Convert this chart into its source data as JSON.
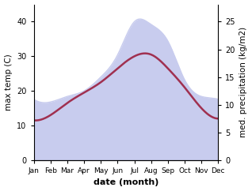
{
  "months": [
    "Jan",
    "Feb",
    "Mar",
    "Apr",
    "May",
    "Jun",
    "Jul",
    "Aug",
    "Sep",
    "Oct",
    "Nov",
    "Dec"
  ],
  "month_indices": [
    1,
    2,
    3,
    4,
    5,
    6,
    7,
    8,
    9,
    10,
    11,
    12
  ],
  "temperature": [
    11.5,
    13.0,
    16.5,
    19.5,
    22.5,
    26.5,
    30.0,
    30.5,
    26.5,
    21.0,
    15.0,
    12.0
  ],
  "precipitation": [
    11.0,
    10.5,
    11.5,
    12.5,
    15.0,
    19.0,
    25.0,
    24.5,
    21.5,
    14.5,
    11.5,
    11.0
  ],
  "temp_color": "#a03050",
  "precip_fill_color": "#c8ccee",
  "bg_color": "#ffffff",
  "left_ylabel": "max temp (C)",
  "right_ylabel": "med. precipitation (kg/m2)",
  "xlabel": "date (month)",
  "left_ylim": [
    0,
    45
  ],
  "right_ylim": [
    0,
    28.125
  ],
  "left_yticks": [
    0,
    10,
    20,
    30,
    40
  ],
  "right_yticks": [
    0,
    5,
    10,
    15,
    20,
    25
  ],
  "figsize": [
    3.18,
    2.42
  ],
  "dpi": 100
}
